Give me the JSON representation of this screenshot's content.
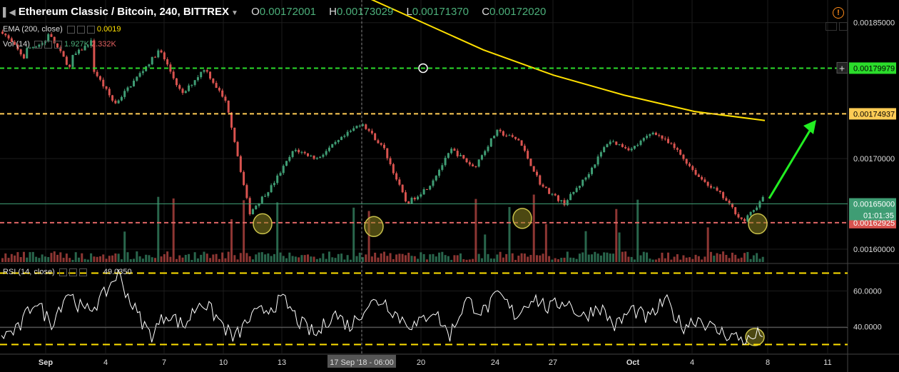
{
  "header": {
    "symbol": "Ethereum Classic / Bitcoin, 240, BITTREX",
    "open_label": "O",
    "open": "0.00172001",
    "high_label": "H",
    "high": "0.00173029",
    "low_label": "L",
    "low": "0.00171370",
    "close_label": "C",
    "close": "0.00172020"
  },
  "ema": {
    "label": "EMA (200, close)",
    "value": "0.0019"
  },
  "volume": {
    "label": "Vol (14)",
    "value1": "1.927K",
    "value2": "2.332K"
  },
  "rsi": {
    "label": "RSI (14, close)",
    "value": "49.0350"
  },
  "crosshair": {
    "time_label": "17 Sep '18 - 06:00"
  },
  "countdown": "01:01:35",
  "colors": {
    "up": "#3f9d74",
    "down": "#d9534f",
    "ema": "#ffe000",
    "resistance_green": "#2bdc2b",
    "resistance_yellow": "#ffcc55",
    "support_red": "#e06666",
    "arrow": "#22ee22",
    "highlight_circle": "#c8c04a"
  },
  "chart_data": {
    "type": "candlestick",
    "price_axis": {
      "ylim": [
        0.001585,
        0.001875
      ],
      "ticks": [
        "0.00185000",
        "0.00170000",
        "0.00160000"
      ],
      "labels": [
        {
          "text": "0.00179979",
          "value": 0.00179979,
          "color": "#2bdc2b",
          "text_color": "#000"
        },
        {
          "text": "0.00174937",
          "value": 0.00174937,
          "color": "#ffcc55",
          "text_color": "#000"
        },
        {
          "text": "0.00165000",
          "value": 0.00165,
          "color": "#3f9d74",
          "text_color": "#fff"
        },
        {
          "text": "0.00162925",
          "value": 0.00162925,
          "color": "#d9534f",
          "text_color": "#fff"
        }
      ]
    },
    "x_axis": {
      "ticks": [
        "Sep",
        "4",
        "7",
        "10",
        "13",
        "17 Sep '18 - 06:00",
        "20",
        "24",
        "27",
        "Oct",
        "4",
        "8",
        "11"
      ]
    },
    "horizontal_lines": [
      {
        "name": "green-resistance",
        "value": 0.00179979,
        "style": "dashed"
      },
      {
        "name": "yellow-resistance",
        "value": 0.00174937,
        "style": "dashed"
      },
      {
        "name": "red-support",
        "value": 0.00162925,
        "style": "dashed"
      }
    ],
    "price_path": [
      [
        0.00184,
        0.00181
      ],
      [
        0.00182,
        0.00183
      ],
      [
        0.00184,
        0.0018
      ],
      [
        0.00181,
        0.00183
      ],
      [
        0.0018,
        0.00176
      ],
      [
        0.00176,
        0.00179
      ],
      [
        0.00179,
        0.00182
      ],
      [
        0.00182,
        0.00177
      ],
      [
        0.00177,
        0.0018
      ],
      [
        0.0018,
        0.00176
      ],
      [
        0.00176,
        0.00164
      ],
      [
        0.00164,
        0.00167
      ],
      [
        0.00167,
        0.00171
      ],
      [
        0.00171,
        0.0017
      ],
      [
        0.0017,
        0.00172
      ],
      [
        0.00172,
        0.00174
      ],
      [
        0.00174,
        0.00171
      ],
      [
        0.00171,
        0.00165
      ],
      [
        0.00165,
        0.00167
      ],
      [
        0.00167,
        0.00171
      ],
      [
        0.00171,
        0.00169
      ],
      [
        0.00169,
        0.00173
      ],
      [
        0.00173,
        0.00172
      ],
      [
        0.00172,
        0.00167
      ],
      [
        0.00167,
        0.00165
      ],
      [
        0.00165,
        0.00168
      ],
      [
        0.00168,
        0.00172
      ],
      [
        0.00172,
        0.00171
      ],
      [
        0.00171,
        0.00173
      ],
      [
        0.00173,
        0.00171
      ],
      [
        0.00171,
        0.00168
      ],
      [
        0.00168,
        0.00166
      ],
      [
        0.00166,
        0.00163
      ],
      [
        0.00163,
        0.00166
      ]
    ],
    "ema_path": [
      0.00189,
      0.001855,
      0.00182,
      0.001792,
      0.00177,
      0.001752,
      0.001742
    ],
    "rsi": {
      "ylim": [
        25,
        75
      ],
      "ticks": [
        "60.0000",
        "40.0000"
      ],
      "bands": [
        70,
        30
      ],
      "path": [
        35,
        38,
        55,
        42,
        60,
        48,
        55,
        70,
        50,
        35,
        48,
        40,
        55,
        45,
        33,
        45,
        50,
        55,
        42,
        35,
        48,
        40,
        52,
        55,
        45,
        40,
        50,
        35,
        55,
        48,
        58,
        46,
        57,
        50,
        55,
        45,
        52,
        40,
        50,
        44,
        55,
        40,
        45,
        38,
        35,
        32,
        38
      ]
    },
    "annotations": [
      {
        "type": "circle",
        "at": "Sep 12 low"
      },
      {
        "type": "circle",
        "at": "Sep 17 low"
      },
      {
        "type": "circle",
        "at": "Sep 25 low"
      },
      {
        "type": "circle",
        "at": "Oct 7 low"
      },
      {
        "type": "circle",
        "at": "RSI Oct 7 low"
      },
      {
        "type": "arrow",
        "direction": "up",
        "target": "0.00174937"
      }
    ]
  }
}
